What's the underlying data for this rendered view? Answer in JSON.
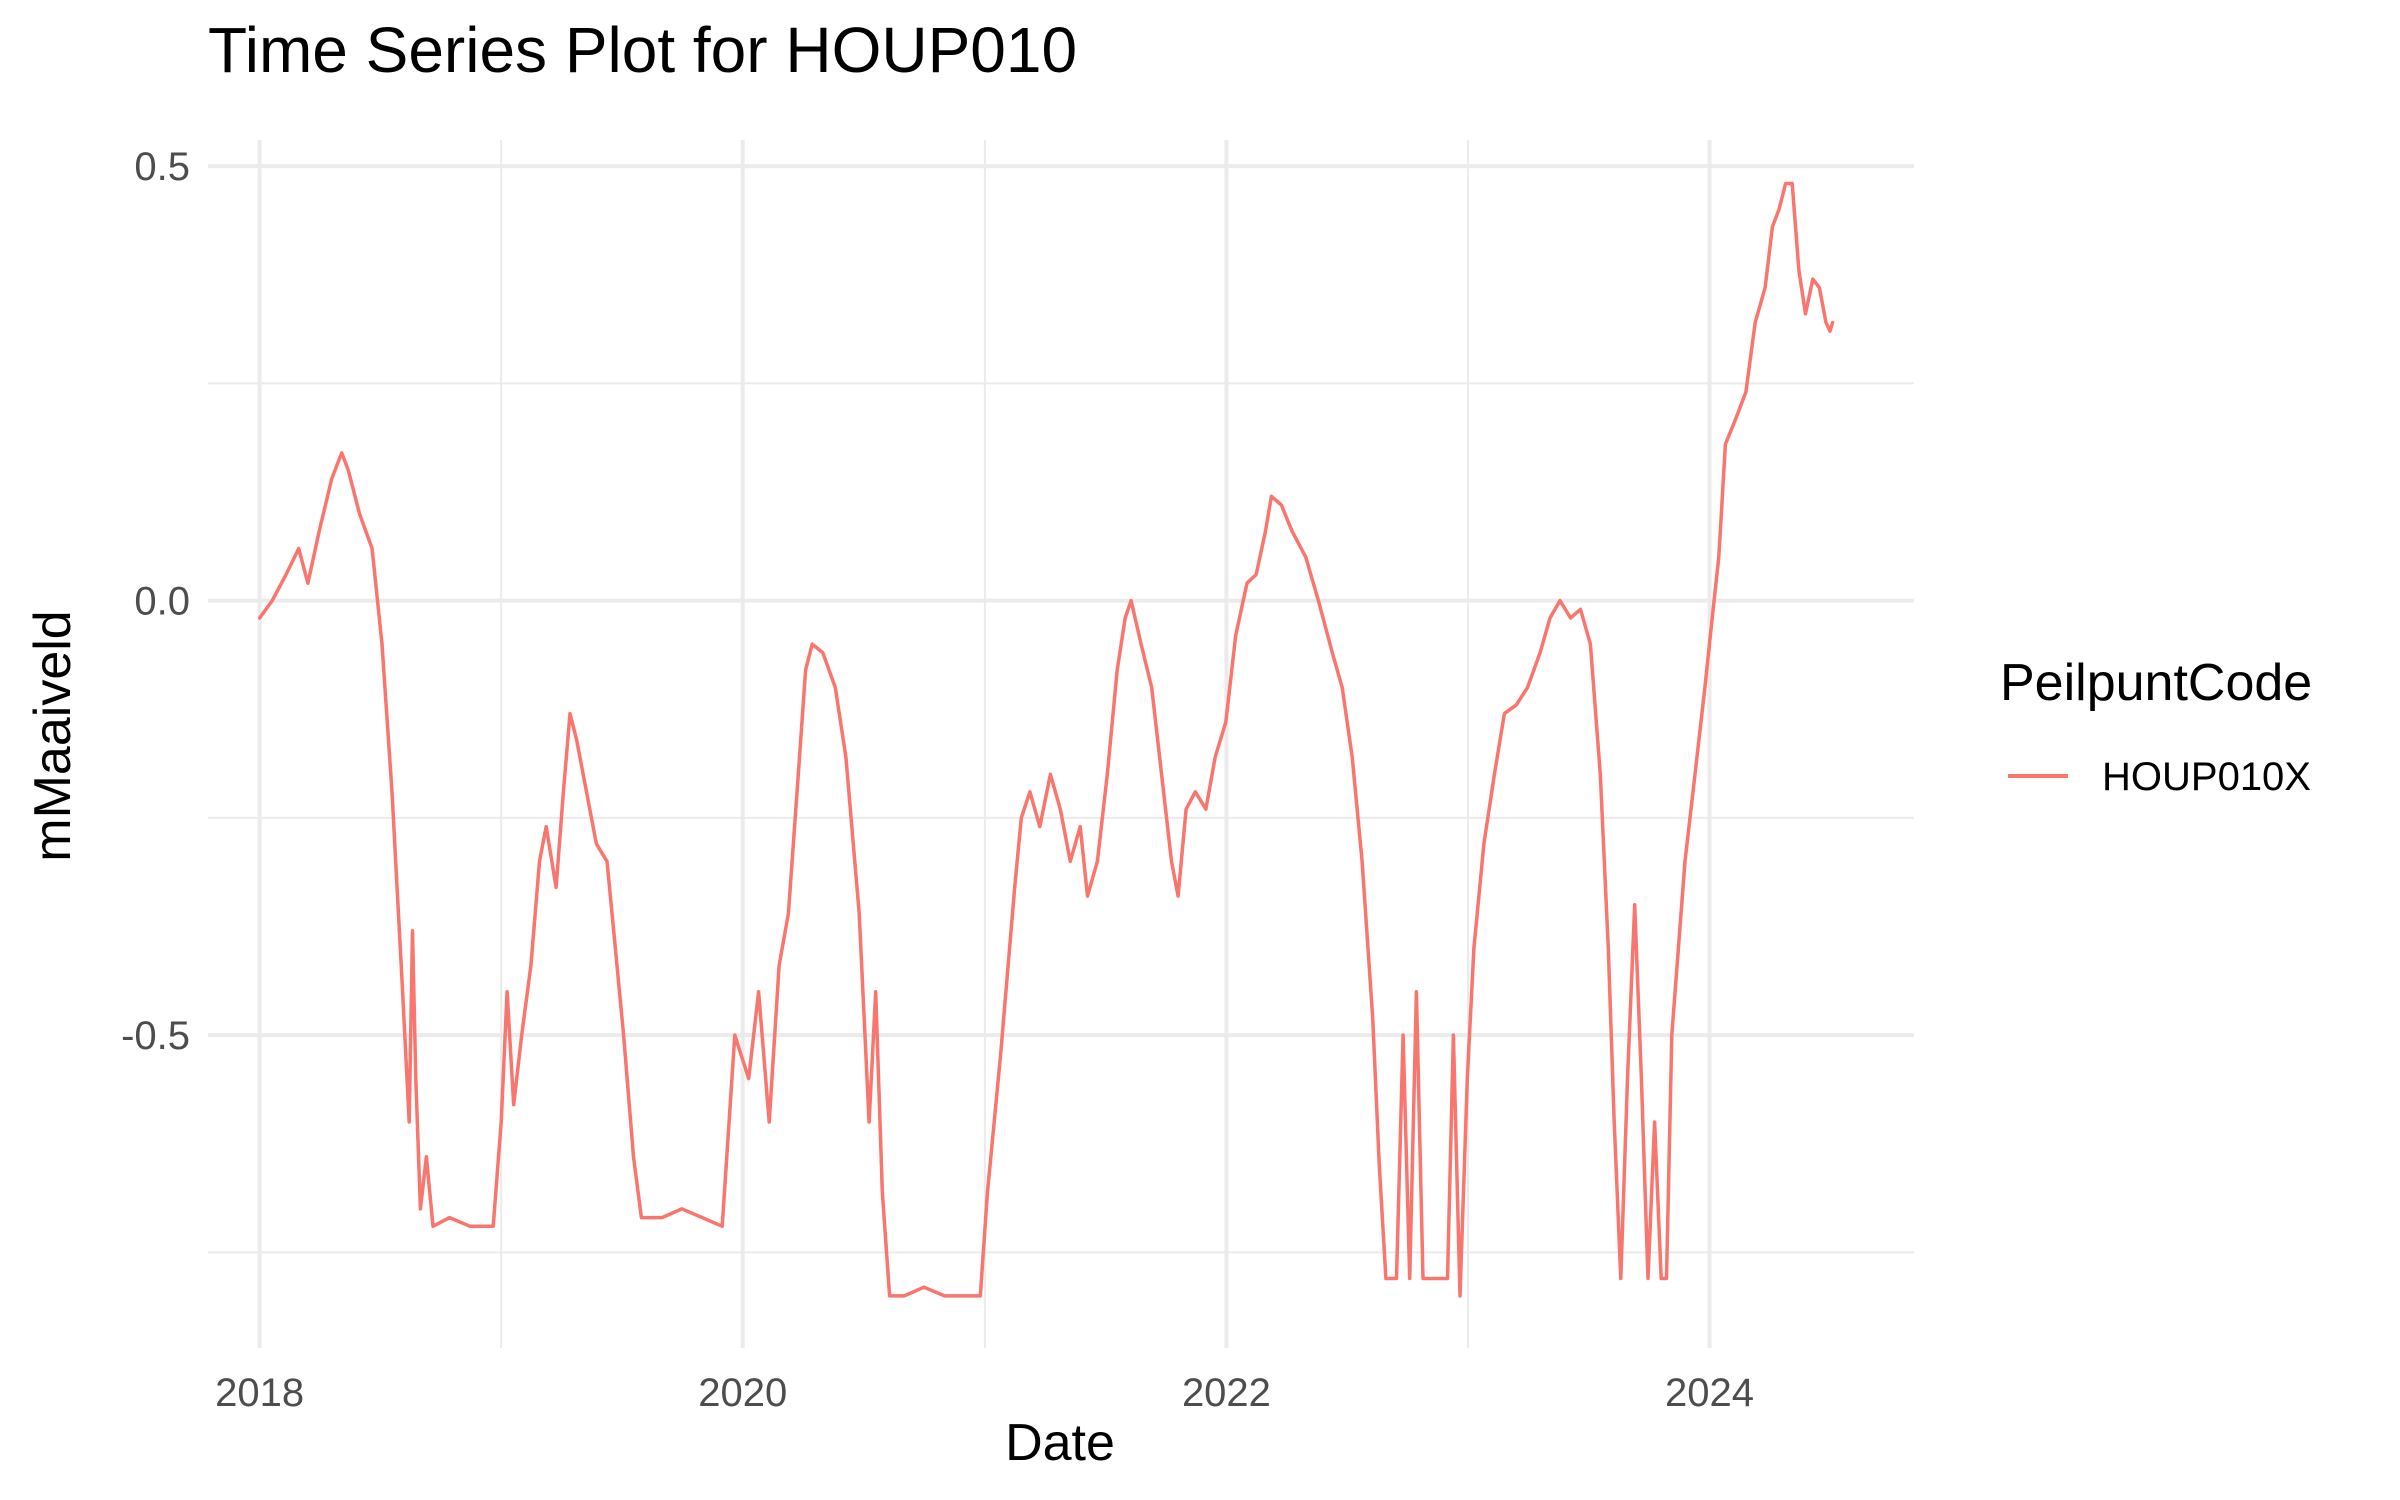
{
  "chart_data": {
    "type": "line",
    "title": "Time Series Plot for HOUP010",
    "xlabel": "Date",
    "ylabel": "mMaaiveld",
    "x_ticks": [
      "2018",
      "2020",
      "2022",
      "2024"
    ],
    "y_ticks": [
      "0.5",
      "0.0",
      "-0.5"
    ],
    "xlim": [
      "2017-10-15",
      "2024-11-05"
    ],
    "ylim": [
      -0.86,
      0.53
    ],
    "grid": true,
    "legend": {
      "title": "PeilpuntCode",
      "position": "right"
    },
    "series": [
      {
        "name": "HOUP010X",
        "color": "#F8766D",
        "points": [
          [
            "2018-01-01",
            -0.02
          ],
          [
            "2018-01-20",
            0.0
          ],
          [
            "2018-02-10",
            0.03
          ],
          [
            "2018-03-01",
            0.06
          ],
          [
            "2018-03-15",
            0.02
          ],
          [
            "2018-04-01",
            0.08
          ],
          [
            "2018-04-20",
            0.14
          ],
          [
            "2018-05-05",
            0.17
          ],
          [
            "2018-05-15",
            0.15
          ],
          [
            "2018-06-01",
            0.1
          ],
          [
            "2018-06-20",
            0.06
          ],
          [
            "2018-07-05",
            -0.05
          ],
          [
            "2018-07-20",
            -0.22
          ],
          [
            "2018-08-05",
            -0.45
          ],
          [
            "2018-08-15",
            -0.6
          ],
          [
            "2018-08-20",
            -0.38
          ],
          [
            "2018-08-25",
            -0.55
          ],
          [
            "2018-09-01",
            -0.7
          ],
          [
            "2018-09-10",
            -0.64
          ],
          [
            "2018-09-20",
            -0.72
          ],
          [
            "2018-10-15",
            -0.71
          ],
          [
            "2018-11-15",
            -0.72
          ],
          [
            "2018-12-20",
            -0.72
          ],
          [
            "2019-01-01",
            -0.6
          ],
          [
            "2019-01-10",
            -0.45
          ],
          [
            "2019-01-20",
            -0.58
          ],
          [
            "2019-02-01",
            -0.5
          ],
          [
            "2019-02-15",
            -0.42
          ],
          [
            "2019-02-28",
            -0.3
          ],
          [
            "2019-03-10",
            -0.26
          ],
          [
            "2019-03-25",
            -0.33
          ],
          [
            "2019-04-05",
            -0.22
          ],
          [
            "2019-04-15",
            -0.13
          ],
          [
            "2019-04-25",
            -0.16
          ],
          [
            "2019-05-10",
            -0.22
          ],
          [
            "2019-05-25",
            -0.28
          ],
          [
            "2019-06-10",
            -0.3
          ],
          [
            "2019-06-20",
            -0.38
          ],
          [
            "2019-07-05",
            -0.5
          ],
          [
            "2019-07-20",
            -0.64
          ],
          [
            "2019-08-01",
            -0.71
          ],
          [
            "2019-09-01",
            -0.71
          ],
          [
            "2019-10-01",
            -0.7
          ],
          [
            "2019-11-01",
            -0.71
          ],
          [
            "2019-12-01",
            -0.72
          ],
          [
            "2019-12-20",
            -0.5
          ],
          [
            "2020-01-10",
            -0.55
          ],
          [
            "2020-01-25",
            -0.45
          ],
          [
            "2020-02-10",
            -0.6
          ],
          [
            "2020-02-25",
            -0.42
          ],
          [
            "2020-03-10",
            -0.36
          ],
          [
            "2020-03-25",
            -0.2
          ],
          [
            "2020-04-05",
            -0.08
          ],
          [
            "2020-04-15",
            -0.05
          ],
          [
            "2020-05-01",
            -0.06
          ],
          [
            "2020-05-20",
            -0.1
          ],
          [
            "2020-06-05",
            -0.18
          ],
          [
            "2020-06-25",
            -0.36
          ],
          [
            "2020-07-10",
            -0.6
          ],
          [
            "2020-07-20",
            -0.45
          ],
          [
            "2020-07-30",
            -0.68
          ],
          [
            "2020-08-10",
            -0.8
          ],
          [
            "2020-09-01",
            -0.8
          ],
          [
            "2020-10-01",
            -0.79
          ],
          [
            "2020-11-01",
            -0.8
          ],
          [
            "2020-12-01",
            -0.8
          ],
          [
            "2020-12-25",
            -0.8
          ],
          [
            "2021-01-05",
            -0.68
          ],
          [
            "2021-01-15",
            -0.6
          ],
          [
            "2021-01-25",
            -0.52
          ],
          [
            "2021-02-05",
            -0.42
          ],
          [
            "2021-02-15",
            -0.33
          ],
          [
            "2021-02-25",
            -0.25
          ],
          [
            "2021-03-10",
            -0.22
          ],
          [
            "2021-03-25",
            -0.26
          ],
          [
            "2021-04-10",
            -0.2
          ],
          [
            "2021-04-25",
            -0.24
          ],
          [
            "2021-05-10",
            -0.3
          ],
          [
            "2021-05-25",
            -0.26
          ],
          [
            "2021-06-05",
            -0.34
          ],
          [
            "2021-06-20",
            -0.3
          ],
          [
            "2021-07-05",
            -0.2
          ],
          [
            "2021-07-20",
            -0.08
          ],
          [
            "2021-08-01",
            -0.02
          ],
          [
            "2021-08-10",
            0.0
          ],
          [
            "2021-08-25",
            -0.05
          ],
          [
            "2021-09-10",
            -0.1
          ],
          [
            "2021-09-25",
            -0.2
          ],
          [
            "2021-10-10",
            -0.3
          ],
          [
            "2021-10-20",
            -0.34
          ],
          [
            "2021-11-01",
            -0.24
          ],
          [
            "2021-11-15",
            -0.22
          ],
          [
            "2021-12-01",
            -0.24
          ],
          [
            "2021-12-15",
            -0.18
          ],
          [
            "2021-12-31",
            -0.14
          ],
          [
            "2022-01-15",
            -0.04
          ],
          [
            "2022-02-01",
            0.02
          ],
          [
            "2022-02-15",
            0.03
          ],
          [
            "2022-03-01",
            0.08
          ],
          [
            "2022-03-10",
            0.12
          ],
          [
            "2022-03-25",
            0.11
          ],
          [
            "2022-04-10",
            0.08
          ],
          [
            "2022-05-01",
            0.05
          ],
          [
            "2022-05-20",
            0.0
          ],
          [
            "2022-06-10",
            -0.06
          ],
          [
            "2022-06-25",
            -0.1
          ],
          [
            "2022-07-10",
            -0.18
          ],
          [
            "2022-07-25",
            -0.3
          ],
          [
            "2022-08-10",
            -0.48
          ],
          [
            "2022-08-20",
            -0.65
          ],
          [
            "2022-08-30",
            -0.78
          ],
          [
            "2022-09-15",
            -0.78
          ],
          [
            "2022-09-25",
            -0.5
          ],
          [
            "2022-10-05",
            -0.78
          ],
          [
            "2022-10-15",
            -0.45
          ],
          [
            "2022-10-25",
            -0.78
          ],
          [
            "2022-11-10",
            -0.78
          ],
          [
            "2022-12-01",
            -0.78
          ],
          [
            "2022-12-10",
            -0.5
          ],
          [
            "2022-12-20",
            -0.8
          ],
          [
            "2022-12-31",
            -0.55
          ],
          [
            "2023-01-10",
            -0.4
          ],
          [
            "2023-01-25",
            -0.28
          ],
          [
            "2023-02-10",
            -0.2
          ],
          [
            "2023-02-25",
            -0.13
          ],
          [
            "2023-03-15",
            -0.12
          ],
          [
            "2023-04-01",
            -0.1
          ],
          [
            "2023-04-20",
            -0.06
          ],
          [
            "2023-05-05",
            -0.02
          ],
          [
            "2023-05-20",
            0.0
          ],
          [
            "2023-06-05",
            -0.02
          ],
          [
            "2023-06-20",
            -0.01
          ],
          [
            "2023-07-05",
            -0.05
          ],
          [
            "2023-07-20",
            -0.2
          ],
          [
            "2023-08-01",
            -0.4
          ],
          [
            "2023-08-10",
            -0.6
          ],
          [
            "2023-08-20",
            -0.78
          ],
          [
            "2023-08-30",
            -0.55
          ],
          [
            "2023-09-10",
            -0.35
          ],
          [
            "2023-09-20",
            -0.55
          ],
          [
            "2023-09-30",
            -0.78
          ],
          [
            "2023-10-10",
            -0.6
          ],
          [
            "2023-10-20",
            -0.78
          ],
          [
            "2023-10-28",
            -0.78
          ],
          [
            "2023-11-05",
            -0.5
          ],
          [
            "2023-11-15",
            -0.4
          ],
          [
            "2023-11-25",
            -0.3
          ],
          [
            "2023-12-10",
            -0.2
          ],
          [
            "2023-12-25",
            -0.1
          ],
          [
            "2024-01-05",
            -0.02
          ],
          [
            "2024-01-15",
            0.05
          ],
          [
            "2024-01-25",
            0.18
          ],
          [
            "2024-02-10",
            0.21
          ],
          [
            "2024-02-25",
            0.24
          ],
          [
            "2024-03-10",
            0.32
          ],
          [
            "2024-03-25",
            0.36
          ],
          [
            "2024-04-05",
            0.43
          ],
          [
            "2024-04-15",
            0.45
          ],
          [
            "2024-04-25",
            0.48
          ],
          [
            "2024-05-05",
            0.48
          ],
          [
            "2024-05-15",
            0.38
          ],
          [
            "2024-05-25",
            0.33
          ],
          [
            "2024-06-05",
            0.37
          ],
          [
            "2024-06-15",
            0.36
          ],
          [
            "2024-06-25",
            0.32
          ],
          [
            "2024-07-01",
            0.31
          ],
          [
            "2024-07-05",
            0.32
          ]
        ]
      }
    ]
  }
}
